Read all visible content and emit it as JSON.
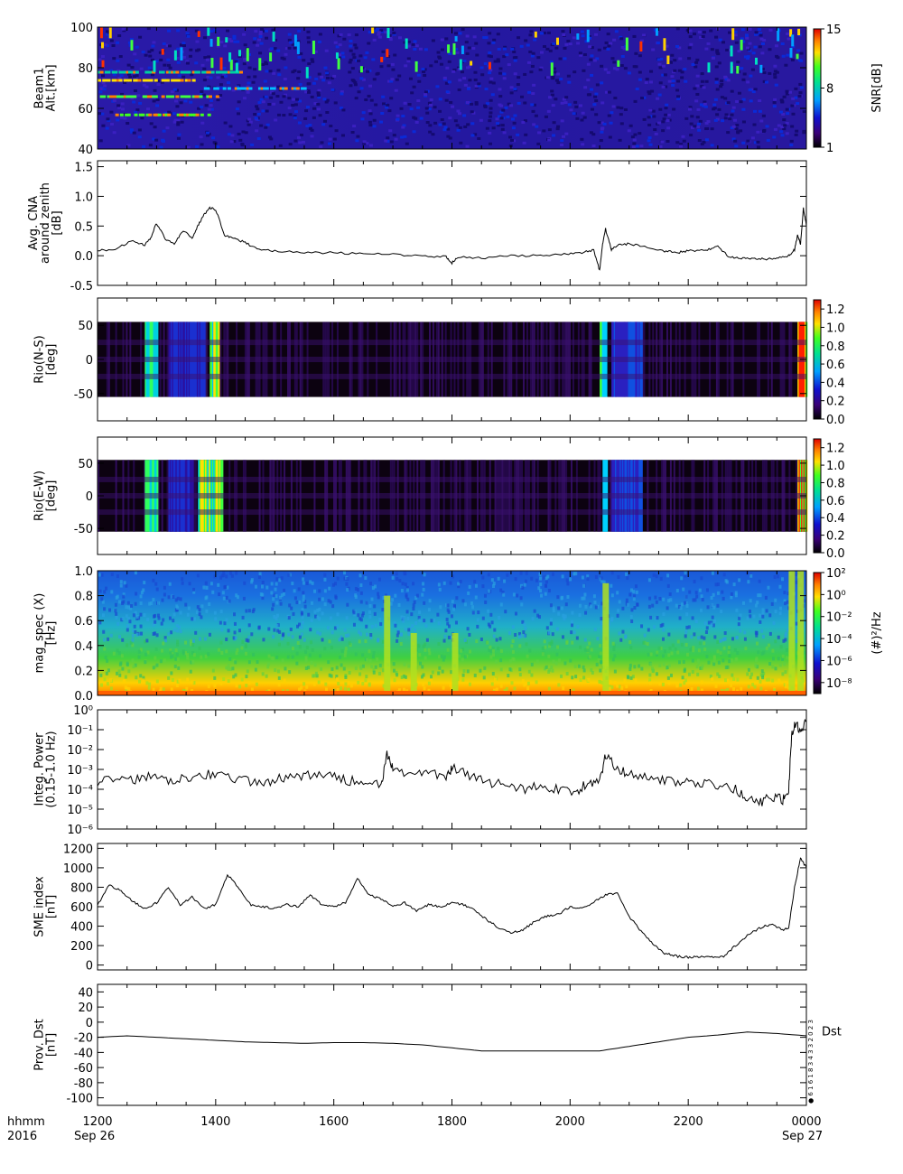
{
  "figure": {
    "time_row_label": "hhmm",
    "year_label": "2016",
    "date_start": "Sep 26",
    "date_end": "Sep 27",
    "stamp_text": "● 6 1 6 1 8 3 4 3 3 2 0 2 3"
  },
  "chart_data": [
    {
      "type": "heatmap",
      "panel": "beam1",
      "ylabel": [
        "Beam1",
        "Alt.[km]"
      ],
      "ylim": [
        40,
        100
      ],
      "yticks": [
        "40",
        "60",
        "80",
        "100"
      ],
      "colorbar": {
        "label": "SNR[dB]",
        "ticks": [
          "1",
          "8",
          "15"
        ],
        "range": [
          1,
          15
        ]
      },
      "x_tick_labels": [
        "1200",
        "1400",
        "1600",
        "1800",
        "2000",
        "2200",
        "0000"
      ],
      "notes": "bright echo layers near 55-80 km before 1600 UT"
    },
    {
      "type": "line",
      "panel": "cna",
      "ylabel": [
        "Avg. CNA",
        "around zenith",
        "[dB]"
      ],
      "ylim": [
        -0.5,
        1.6
      ],
      "yticks": [
        "-0.5",
        "0.0",
        "0.5",
        "1.0",
        "1.5"
      ],
      "x": [
        12.0,
        12.3,
        12.6,
        12.8,
        12.9,
        13.0,
        13.15,
        13.3,
        13.45,
        13.6,
        13.7,
        13.8,
        13.9,
        14.0,
        14.15,
        14.3,
        14.5,
        14.7,
        15.0,
        15.5,
        16.0,
        16.5,
        17.0,
        17.5,
        17.9,
        18.0,
        18.1,
        18.5,
        19.0,
        19.5,
        19.9,
        20.2,
        20.4,
        20.5,
        20.55,
        20.6,
        20.7,
        20.8,
        21.0,
        21.3,
        21.6,
        21.8,
        22.0,
        22.3,
        22.5,
        22.7,
        22.9,
        23.1,
        23.3,
        23.5,
        23.7,
        23.8,
        23.85,
        23.9,
        23.95,
        24.0
      ],
      "y": [
        0.08,
        0.12,
        0.25,
        0.18,
        0.3,
        0.55,
        0.28,
        0.2,
        0.42,
        0.3,
        0.5,
        0.7,
        0.8,
        0.78,
        0.35,
        0.3,
        0.22,
        0.12,
        0.08,
        0.05,
        0.05,
        0.03,
        0.02,
        0.0,
        -0.02,
        -0.12,
        -0.02,
        -0.04,
        0.0,
        0.0,
        0.02,
        0.05,
        0.1,
        -0.25,
        0.2,
        0.45,
        0.1,
        0.18,
        0.2,
        0.15,
        0.08,
        0.05,
        0.08,
        0.1,
        0.15,
        -0.02,
        -0.05,
        -0.05,
        -0.06,
        -0.05,
        0.0,
        0.1,
        0.35,
        0.2,
        0.8,
        0.5
      ]
    },
    {
      "type": "heatmap",
      "panel": "rio_ns",
      "ylabel": [
        "Rio(N-S)",
        "[deg]"
      ],
      "ylim": [
        -90,
        90
      ],
      "yticks": [
        "-50",
        "0",
        "50"
      ],
      "colorbar": {
        "label": "",
        "ticks": [
          "0.0",
          "0.2",
          "0.4",
          "0.6",
          "0.8",
          "1.0",
          "1.2"
        ],
        "range": [
          0,
          1.3
        ]
      }
    },
    {
      "type": "heatmap",
      "panel": "rio_ew",
      "ylabel": [
        "Rio(E-W)",
        "[deg]"
      ],
      "ylim": [
        -90,
        90
      ],
      "yticks": [
        "-50",
        "0",
        "50"
      ],
      "colorbar": {
        "label": "",
        "ticks": [
          "0.0",
          "0.2",
          "0.4",
          "0.6",
          "0.8",
          "1.0",
          "1.2"
        ],
        "range": [
          0,
          1.3
        ]
      }
    },
    {
      "type": "heatmap",
      "panel": "magspec",
      "ylabel": [
        "mag_spec (X)",
        "[Hz]"
      ],
      "ylim": [
        0,
        1.0
      ],
      "yticks": [
        "0.0",
        "0.2",
        "0.4",
        "0.6",
        "0.8",
        "1.0"
      ],
      "colorbar": {
        "label": "(#)²/Hz",
        "ticks": [
          "10⁻⁸",
          "10⁻⁶",
          "10⁻⁴",
          "10⁻²",
          "10⁰",
          "10²"
        ],
        "range": [
          -9,
          2
        ],
        "scale": "log"
      }
    },
    {
      "type": "line",
      "panel": "integ",
      "ylabel": [
        "Integ. Power",
        "(0.15-1.0 Hz)"
      ],
      "yscale": "log",
      "ylim": [
        1e-06,
        1
      ],
      "yticks": [
        "10⁻⁶",
        "10⁻⁵",
        "10⁻⁴",
        "10⁻³",
        "10⁻²",
        "10⁻¹",
        "10⁰"
      ],
      "x": [
        12.0,
        12.3,
        12.6,
        12.9,
        13.2,
        13.5,
        13.8,
        14.1,
        14.4,
        14.7,
        15.0,
        15.3,
        15.6,
        15.9,
        16.2,
        16.5,
        16.8,
        16.9,
        17.0,
        17.3,
        17.6,
        17.9,
        18.0,
        18.3,
        18.6,
        18.9,
        19.2,
        19.5,
        19.8,
        20.1,
        20.3,
        20.5,
        20.6,
        20.8,
        21.0,
        21.3,
        21.6,
        21.9,
        22.2,
        22.5,
        22.8,
        23.0,
        23.2,
        23.4,
        23.6,
        23.7,
        23.75,
        23.8,
        23.9,
        24.0
      ],
      "y": [
        0.0002,
        0.0004,
        0.0003,
        0.0005,
        0.0003,
        0.0004,
        0.0006,
        0.0005,
        0.0003,
        0.0002,
        0.0003,
        0.0004,
        0.0005,
        0.0005,
        0.0003,
        0.0002,
        0.00015,
        0.005,
        0.001,
        0.0006,
        0.0008,
        0.0004,
        0.0012,
        0.0005,
        0.0002,
        0.0002,
        0.0001,
        0.00015,
        0.0001,
        8e-05,
        0.0002,
        0.0002,
        0.006,
        0.001,
        0.0006,
        0.0005,
        0.0003,
        0.0002,
        0.0002,
        0.00015,
        0.0001,
        3e-05,
        2e-05,
        4e-05,
        3e-05,
        0.0001,
        0.05,
        0.2,
        0.1,
        0.3
      ]
    },
    {
      "type": "line",
      "panel": "sme",
      "ylabel": [
        "SME index",
        "[nT]"
      ],
      "ylim": [
        -50,
        1250
      ],
      "yticks": [
        "0",
        "200",
        "400",
        "600",
        "800",
        "1000",
        "1200"
      ],
      "x": [
        12.0,
        12.2,
        12.4,
        12.6,
        12.8,
        13.0,
        13.2,
        13.4,
        13.6,
        13.8,
        14.0,
        14.2,
        14.4,
        14.6,
        14.8,
        15.0,
        15.2,
        15.4,
        15.6,
        15.8,
        16.0,
        16.2,
        16.4,
        16.6,
        16.8,
        17.0,
        17.2,
        17.4,
        17.6,
        17.8,
        18.0,
        18.2,
        18.4,
        18.6,
        18.8,
        19.0,
        19.2,
        19.4,
        19.6,
        19.8,
        20.0,
        20.2,
        20.4,
        20.6,
        20.8,
        21.0,
        21.2,
        21.4,
        21.6,
        21.8,
        22.0,
        22.2,
        22.4,
        22.6,
        22.8,
        23.0,
        23.2,
        23.4,
        23.6,
        23.7,
        23.8,
        23.9,
        24.0
      ],
      "y": [
        620,
        820,
        760,
        650,
        580,
        640,
        800,
        620,
        700,
        580,
        620,
        930,
        780,
        620,
        600,
        580,
        620,
        600,
        720,
        620,
        600,
        640,
        900,
        720,
        680,
        600,
        640,
        560,
        620,
        600,
        640,
        620,
        560,
        460,
        380,
        330,
        360,
        450,
        500,
        520,
        600,
        580,
        650,
        720,
        740,
        500,
        350,
        220,
        120,
        90,
        80,
        85,
        80,
        90,
        200,
        300,
        380,
        420,
        360,
        380,
        800,
        1100,
        1000
      ]
    },
    {
      "type": "line",
      "panel": "dst",
      "ylabel": [
        "Prov. Dst",
        "[nT]"
      ],
      "ylim": [
        -110,
        50
      ],
      "yticks": [
        "-100",
        "-80",
        "-60",
        "-40",
        "-20",
        "0",
        "20",
        "40"
      ],
      "series_label": "Dst",
      "x": [
        12.0,
        12.5,
        13.0,
        13.5,
        14.0,
        14.5,
        15.0,
        15.5,
        16.0,
        16.5,
        17.0,
        17.5,
        18.0,
        18.5,
        19.0,
        19.5,
        20.0,
        20.5,
        21.0,
        21.5,
        22.0,
        22.5,
        23.0,
        23.5,
        24.0
      ],
      "y": [
        -20,
        -18,
        -20,
        -22,
        -24,
        -26,
        -27,
        -28,
        -27,
        -27,
        -28,
        -30,
        -34,
        -38,
        -38,
        -38,
        -38,
        -38,
        -32,
        -26,
        -20,
        -17,
        -13,
        -15,
        -18
      ]
    }
  ]
}
